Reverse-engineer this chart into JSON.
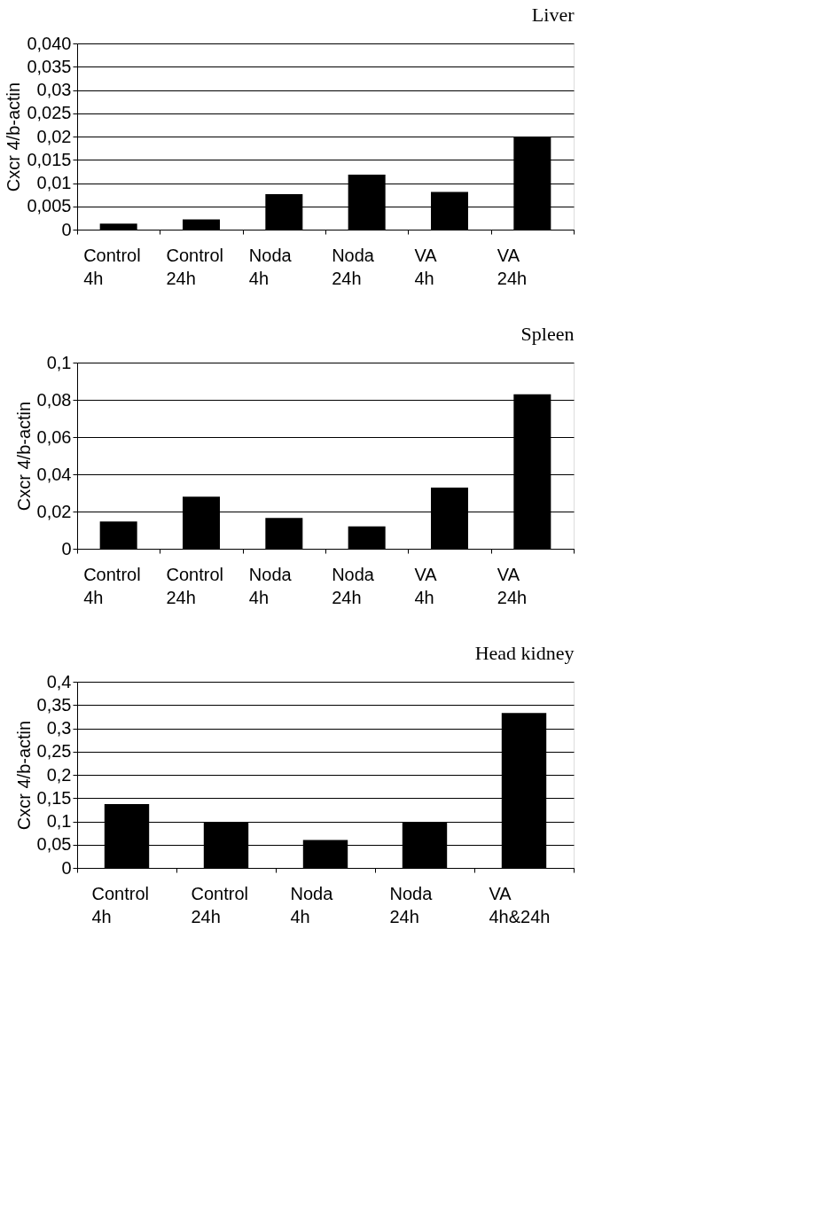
{
  "chart_data": [
    {
      "type": "bar",
      "title": "Liver",
      "ylabel": "Cxcr 4/b-actin",
      "categories": [
        "Control\n4h",
        "Control\n24h",
        "Noda\n4h",
        "Noda\n24h",
        "VA\n4h",
        "VA\n24h"
      ],
      "values": [
        0.0013,
        0.0022,
        0.0076,
        0.0118,
        0.0081,
        0.0198
      ],
      "color": "#000000",
      "ylim": [
        0,
        0.04
      ],
      "yticks": [
        0,
        {
          "value": 0.005,
          "label": "0,005"
        },
        {
          "value": 0.01,
          "label": "0,01"
        },
        {
          "value": 0.015,
          "label": "0,015"
        },
        {
          "value": 0.02,
          "label": "0,02"
        },
        {
          "value": 0.025,
          "label": "0,025"
        },
        {
          "value": 0.03,
          "label": "0,03"
        },
        {
          "value": 0.035,
          "label": "0,035"
        },
        {
          "value": 0.04,
          "label": "0,040"
        }
      ],
      "grid": "y"
    },
    {
      "type": "bar",
      "title": "Spleen",
      "ylabel": "Cxcr 4/b-actin",
      "categories": [
        "Control\n4h",
        "Control\n24h",
        "Noda\n4h",
        "Noda\n24h",
        "VA\n4h",
        "VA\n24h"
      ],
      "values": [
        0.0146,
        0.028,
        0.0165,
        0.012,
        0.0328,
        0.083
      ],
      "color": "#000000",
      "ylim": [
        0,
        0.1
      ],
      "yticks": [
        0,
        {
          "value": 0.02,
          "label": "0,02"
        },
        {
          "value": 0.04,
          "label": "0,04"
        },
        {
          "value": 0.06,
          "label": "0,06"
        },
        {
          "value": 0.08,
          "label": "0,08"
        },
        {
          "value": 0.1,
          "label": "0,1"
        }
      ],
      "grid": "y"
    },
    {
      "type": "bar",
      "title": "Head kidney",
      "ylabel": "Cxcr 4/b-actin",
      "categories": [
        "Control\n4h",
        "Control\n24h",
        "Noda\n4h",
        "Noda\n24h",
        "VA\n4h&24h"
      ],
      "values": [
        0.137,
        0.098,
        0.06,
        0.098,
        0.333
      ],
      "color": "#000000",
      "ylim": [
        0,
        0.4
      ],
      "yticks": [
        0,
        {
          "value": 0.05,
          "label": "0,05"
        },
        {
          "value": 0.1,
          "label": "0,1"
        },
        {
          "value": 0.15,
          "label": "0,15"
        },
        {
          "value": 0.2,
          "label": "0,2"
        },
        {
          "value": 0.25,
          "label": "0,25"
        },
        {
          "value": 0.3,
          "label": "0,3"
        },
        {
          "value": 0.35,
          "label": "0,35"
        },
        {
          "value": 0.4,
          "label": "0,4"
        }
      ],
      "grid": "y"
    }
  ]
}
